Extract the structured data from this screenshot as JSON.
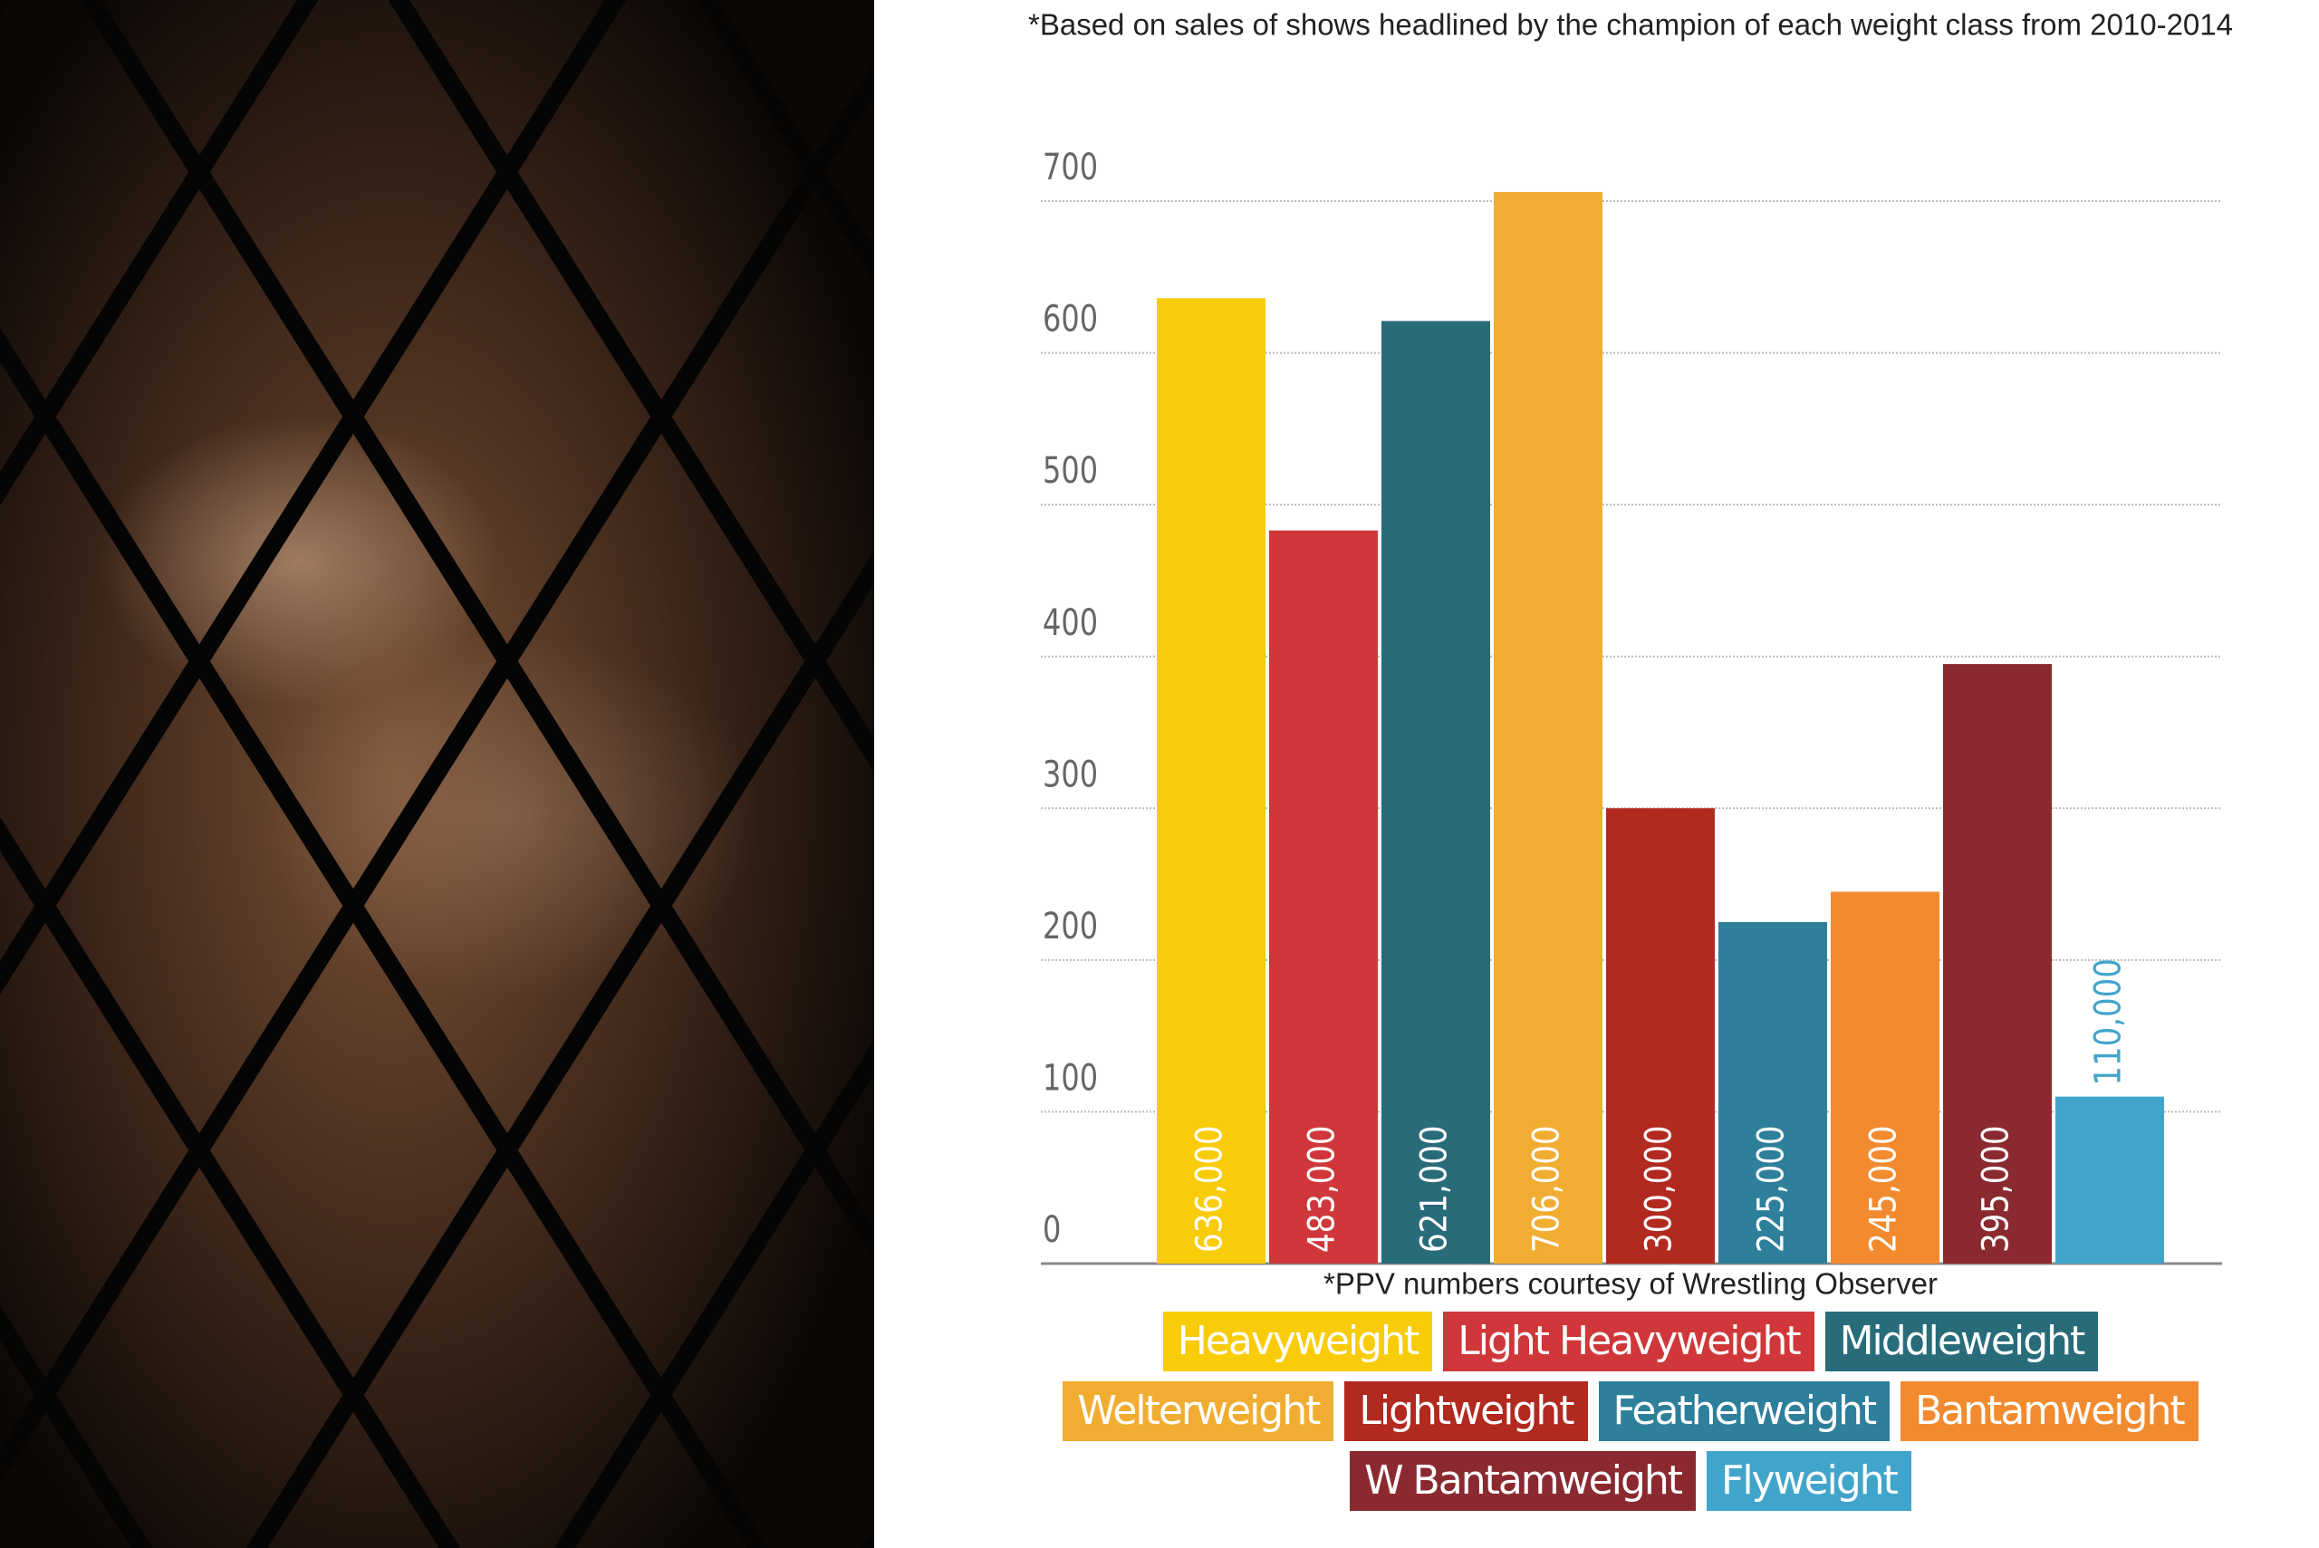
{
  "chart_data": {
    "type": "bar",
    "title": "*Based on sales of shows headlined by the champion of each weight class from 2010-2014",
    "note": "*PPV numbers courtesy of Wrestling Observer",
    "categories": [
      "Heavyweight",
      "Light Heavyweight",
      "Middleweight",
      "Welterweight",
      "Lightweight",
      "Featherweight",
      "Bantamweight",
      "W Bantamweight",
      "Flyweight"
    ],
    "values": [
      636,
      483,
      621,
      706,
      300,
      225,
      245,
      395,
      110
    ],
    "value_labels": [
      "636,000",
      "483,000",
      "621,000",
      "706,000",
      "300,000",
      "225,000",
      "245,000",
      "395,000",
      "110,000"
    ],
    "colors": [
      "#f9cc0a",
      "#d0373a",
      "#286c7a",
      "#f0ad31",
      "#b1291f",
      "#2e7f9a",
      "#f28b30",
      "#8a2a30",
      "#41a5cb"
    ],
    "ylim": [
      0,
      700
    ],
    "yticks": [
      0,
      100,
      200,
      300,
      400,
      500,
      600,
      700
    ],
    "grid": true
  }
}
